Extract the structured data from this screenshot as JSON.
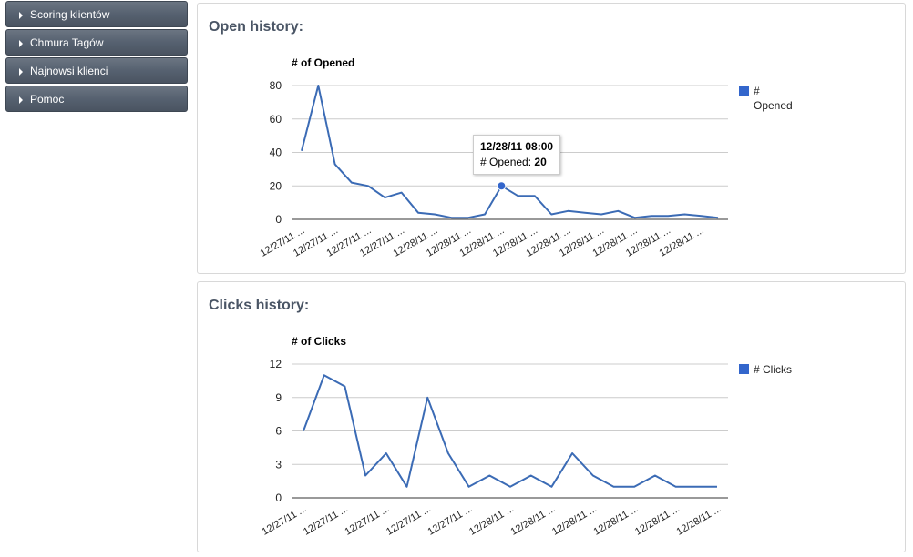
{
  "sidebar": {
    "items": [
      {
        "label": "Scoring klientów"
      },
      {
        "label": "Chmura Tagów"
      },
      {
        "label": "Najnowsi klienci"
      },
      {
        "label": "Pomoc"
      }
    ]
  },
  "open_panel": {
    "title": "Open history:",
    "tooltip": {
      "date": "12/28/11 08:00",
      "series_label": "# Opened:",
      "value": "20"
    }
  },
  "clicks_panel": {
    "title": "Clicks history:"
  },
  "colors": {
    "line": "#3b6bb5",
    "legend": "#3366cc",
    "sidebar": "#566170",
    "title": "#4a5565"
  },
  "chart_data": [
    {
      "type": "line",
      "ylabel": "# of Opened",
      "ylim": [
        0,
        80
      ],
      "yticks": [
        0,
        20,
        40,
        60,
        80
      ],
      "grid": true,
      "legend_position": "right",
      "series": [
        {
          "name": "# Opened",
          "legend_lines": [
            "#",
            "Opened"
          ],
          "values": [
            41,
            80,
            33,
            22,
            20,
            13,
            16,
            4,
            3,
            1,
            1,
            3,
            20,
            14,
            14,
            3,
            5,
            4,
            3,
            5,
            1,
            2,
            2,
            3,
            2,
            1
          ]
        }
      ],
      "x_tick_labels": [
        "12/27/11 ...",
        "12/27/11 ...",
        "12/27/11 ...",
        "12/27/11 ...",
        "12/28/11 ...",
        "12/28/11 ...",
        "12/28/11 ...",
        "12/28/11 ...",
        "12/28/11 ...",
        "12/28/11 ...",
        "12/28/11 ...",
        "12/28/11 ...",
        "12/28/11 ..."
      ],
      "highlight_index": 12
    },
    {
      "type": "line",
      "ylabel": "# of Clicks",
      "ylim": [
        0,
        12
      ],
      "yticks": [
        0,
        3,
        6,
        9,
        12
      ],
      "grid": true,
      "legend_position": "right",
      "series": [
        {
          "name": "# Clicks",
          "legend_lines": [
            "# Clicks"
          ],
          "values": [
            6,
            11,
            10,
            2,
            4,
            1,
            9,
            4,
            1,
            2,
            1,
            2,
            1,
            4,
            2,
            1,
            1,
            2,
            1,
            1,
            1
          ]
        }
      ],
      "x_tick_labels": [
        "12/27/11 ...",
        "12/27/11 ...",
        "12/27/11 ...",
        "12/27/11 ...",
        "12/27/11 ...",
        "12/28/11 ...",
        "12/28/11 ...",
        "12/28/11 ...",
        "12/28/11 ...",
        "12/28/11 ...",
        "12/28/11 ..."
      ]
    }
  ]
}
